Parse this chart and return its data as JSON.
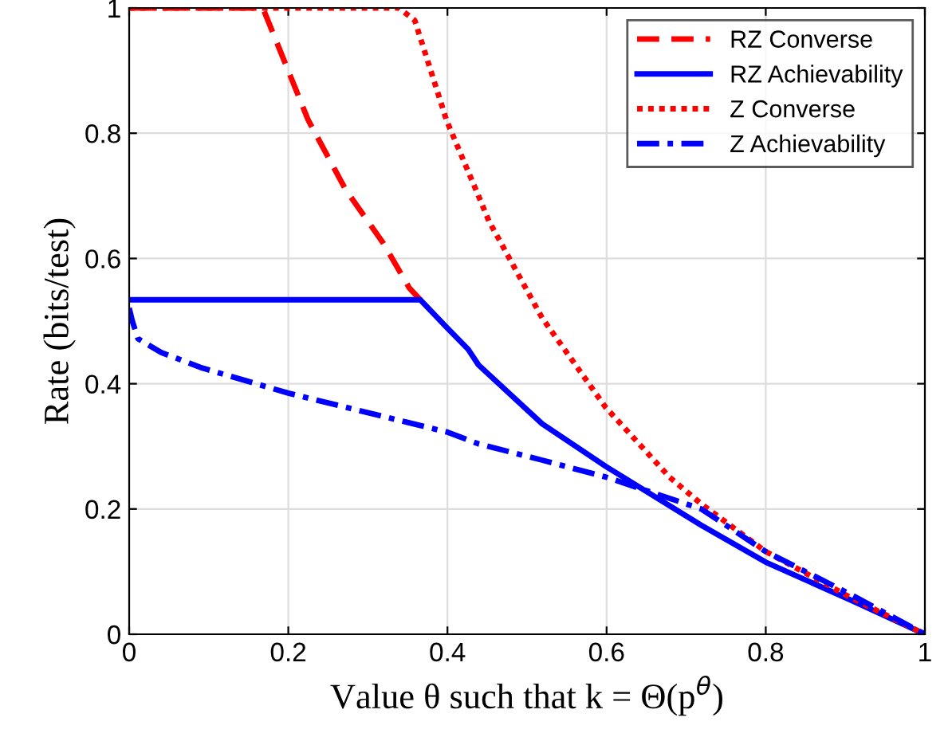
{
  "chart_data": {
    "type": "line",
    "xlabel": "Value θ such that k = Θ(p$^{θ}$)",
    "ylabel": "Rate (bits/test)",
    "xlim": [
      0,
      1
    ],
    "ylim": [
      0,
      1
    ],
    "xticks": [
      0,
      0.2,
      0.4,
      0.6,
      0.8,
      1
    ],
    "yticks": [
      0,
      0.2,
      0.4,
      0.6,
      0.8,
      1
    ],
    "grid": true,
    "legend": "top right",
    "marker": "none",
    "series": [
      {
        "name": "RZ Converse",
        "color": "#ff0000",
        "line_style": "dashed",
        "x": [
          0,
          0.168,
          0.225,
          0.272,
          0.319,
          0.352,
          0.366
        ],
        "values": [
          1,
          1,
          0.821,
          0.71,
          0.625,
          0.553,
          0.534
        ]
      },
      {
        "name": "RZ Achievability",
        "color": "#0000ff",
        "line_style": "solid",
        "x": [
          0.003,
          0.366,
          0.399,
          0.426,
          0.439,
          0.519,
          0.599,
          0.719,
          0.8,
          0.906,
          1
        ],
        "values": [
          0.534,
          0.534,
          0.49,
          0.455,
          0.43,
          0.336,
          0.268,
          0.174,
          0.115,
          0.055,
          0
        ]
      },
      {
        "name": "Z Converse",
        "color": "#ff0000",
        "line_style": "dotted",
        "x": [
          0,
          0.339,
          0.359,
          0.399,
          0.439,
          0.452,
          0.519,
          0.599,
          0.679,
          0.719,
          0.8,
          0.906,
          1
        ],
        "values": [
          1,
          1,
          0.98,
          0.82,
          0.7,
          0.66,
          0.505,
          0.362,
          0.251,
          0.208,
          0.132,
          0.059,
          0
        ]
      },
      {
        "name": "Z Achievability",
        "color": "#0000ff",
        "line_style": "dashdot",
        "x": [
          0,
          0.004,
          0.011,
          0.04,
          0.092,
          0.2,
          0.399,
          0.439,
          0.519,
          0.599,
          0.719,
          0.8,
          0.906,
          1
        ],
        "values": [
          0.521,
          0.5,
          0.472,
          0.45,
          0.425,
          0.385,
          0.323,
          0.304,
          0.278,
          0.251,
          0.2,
          0.132,
          0.064,
          0
        ]
      }
    ]
  }
}
